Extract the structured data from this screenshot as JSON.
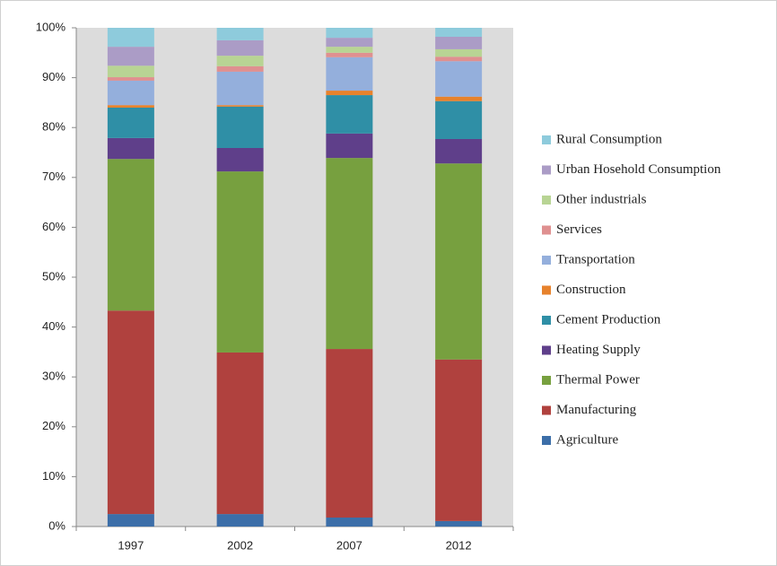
{
  "chart_data": {
    "type": "stacked_bar",
    "categories": [
      "1997",
      "2002",
      "2007",
      "2012"
    ],
    "series": [
      {
        "name": "Agriculture",
        "color": "#3c6ea8",
        "values": [
          2.5,
          2.5,
          1.8,
          1.1
        ]
      },
      {
        "name": "Manufacturing",
        "color": "#b0413e",
        "values": [
          40.8,
          32.4,
          33.8,
          32.4
        ]
      },
      {
        "name": "Thermal Power",
        "color": "#77a03f",
        "values": [
          30.4,
          36.3,
          38.3,
          39.3
        ]
      },
      {
        "name": "Heating Supply",
        "color": "#5f3f8a",
        "values": [
          4.2,
          4.7,
          4.9,
          4.9
        ]
      },
      {
        "name": "Cement Production",
        "color": "#2f8fa6",
        "values": [
          6.1,
          8.3,
          7.7,
          7.6
        ]
      },
      {
        "name": "Construction",
        "color": "#e7822c",
        "values": [
          0.5,
          0.3,
          0.9,
          0.9
        ]
      },
      {
        "name": "Transportation",
        "color": "#94afdc",
        "values": [
          4.9,
          6.7,
          6.7,
          7.1
        ]
      },
      {
        "name": "Services",
        "color": "#df9090",
        "values": [
          0.7,
          1.1,
          0.9,
          0.9
        ]
      },
      {
        "name": "Other industrials",
        "color": "#b8d494",
        "values": [
          2.3,
          2.1,
          1.2,
          1.5
        ]
      },
      {
        "name": "Urban Hosehold Consumption",
        "color": "#ab9cc6",
        "values": [
          3.8,
          3.1,
          1.8,
          2.5
        ]
      },
      {
        "name": "Rural Consumption",
        "color": "#8ecbdc",
        "values": [
          3.8,
          2.5,
          2.0,
          1.8
        ]
      }
    ],
    "ylim": [
      0,
      100
    ],
    "yticks": [
      {
        "value": 0,
        "label": "0%"
      },
      {
        "value": 10,
        "label": "10%"
      },
      {
        "value": 20,
        "label": "20%"
      },
      {
        "value": 30,
        "label": "30%"
      },
      {
        "value": 40,
        "label": "40%"
      },
      {
        "value": 50,
        "label": "50%"
      },
      {
        "value": 60,
        "label": "60%"
      },
      {
        "value": 70,
        "label": "70%"
      },
      {
        "value": 80,
        "label": "80%"
      },
      {
        "value": 90,
        "label": "90%"
      },
      {
        "value": 100,
        "label": "100%"
      }
    ],
    "legend": "right"
  }
}
